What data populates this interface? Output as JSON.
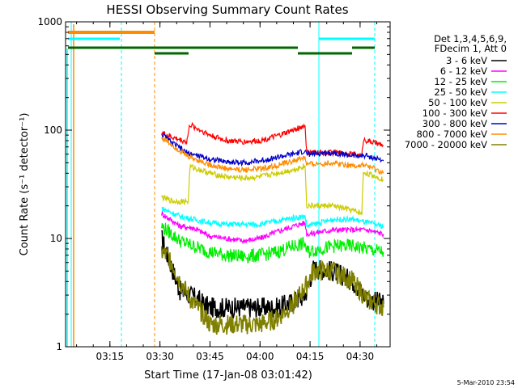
{
  "chart_data": {
    "type": "line",
    "title": "HESSI Observing Summary Count Rates",
    "xlabel": "Start Time (17-Jan-08 03:01:42)",
    "ylabel": "Count Rate (s⁻¹ detector⁻¹)",
    "yscale": "log",
    "ylim": [
      1,
      1000
    ],
    "xlim": [
      "03:01:42",
      "04:39:00"
    ],
    "x_ticks": [
      "03:15",
      "03:30",
      "03:45",
      "04:00",
      "04:15",
      "04:30"
    ],
    "y_ticks": [
      "1",
      "10",
      "100",
      "1000"
    ],
    "footer": "5-Mar-2010 23:54",
    "legend": {
      "position": "right",
      "header": [
        "Det 1,3,4,5,6,9,",
        "FDecim 1, Att 0"
      ]
    },
    "series": [
      {
        "name": "3 - 6 keV",
        "color": "#000000",
        "points": [
          [
            "03:30:30",
            10
          ],
          [
            "03:36:00",
            3.3
          ],
          [
            "03:40:00",
            2.9
          ],
          [
            "03:45:00",
            2.3
          ],
          [
            "03:50:00",
            2.3
          ],
          [
            "03:55:00",
            2.3
          ],
          [
            "04:00:00",
            2.3
          ],
          [
            "04:05:00",
            2.3
          ],
          [
            "04:10:00",
            2.6
          ],
          [
            "04:13:30",
            3.0
          ],
          [
            "04:16:00",
            5.3
          ],
          [
            "04:22:00",
            5.0
          ],
          [
            "04:28:00",
            4.0
          ],
          [
            "04:32:00",
            2.8
          ],
          [
            "04:37:00",
            2.5
          ]
        ]
      },
      {
        "name": "6 - 12 keV",
        "color": "#ff00ff",
        "points": [
          [
            "03:30:30",
            17
          ],
          [
            "03:36:00",
            13
          ],
          [
            "03:40:00",
            12.5
          ],
          [
            "03:45:00",
            10.5
          ],
          [
            "03:50:00",
            10
          ],
          [
            "03:55:00",
            9.5
          ],
          [
            "04:00:00",
            10
          ],
          [
            "04:05:00",
            11.5
          ],
          [
            "04:10:00",
            13
          ],
          [
            "04:13:30",
            14
          ],
          [
            "04:14:00",
            11
          ],
          [
            "04:22:00",
            12
          ],
          [
            "04:28:00",
            12
          ],
          [
            "04:32:00",
            12
          ],
          [
            "04:37:00",
            11
          ]
        ]
      },
      {
        "name": "12 - 25 keV",
        "color": "#00ee00",
        "points": [
          [
            "03:30:30",
            13
          ],
          [
            "03:36:00",
            9.5
          ],
          [
            "03:40:00",
            8.5
          ],
          [
            "03:45:00",
            7.5
          ],
          [
            "03:50:00",
            7
          ],
          [
            "03:55:00",
            6.8
          ],
          [
            "04:00:00",
            7
          ],
          [
            "04:05:00",
            7.5
          ],
          [
            "04:10:00",
            8.5
          ],
          [
            "04:13:30",
            9
          ],
          [
            "04:14:00",
            7.5
          ],
          [
            "04:22:00",
            8.5
          ],
          [
            "04:28:00",
            8.5
          ],
          [
            "04:32:00",
            8
          ],
          [
            "04:37:00",
            7.5
          ]
        ]
      },
      {
        "name": "25 - 50 keV",
        "color": "#00ffff",
        "points": [
          [
            "03:30:30",
            19
          ],
          [
            "03:36:00",
            16
          ],
          [
            "03:40:00",
            15
          ],
          [
            "03:45:00",
            14
          ],
          [
            "03:50:00",
            13.5
          ],
          [
            "03:55:00",
            13.5
          ],
          [
            "04:00:00",
            13.5
          ],
          [
            "04:05:00",
            14.5
          ],
          [
            "04:10:00",
            15.5
          ],
          [
            "04:13:30",
            16
          ],
          [
            "04:14:00",
            13
          ],
          [
            "04:22:00",
            15
          ],
          [
            "04:28:00",
            15
          ],
          [
            "04:32:00",
            14
          ],
          [
            "04:37:00",
            13
          ]
        ]
      },
      {
        "name": "50 - 100 keV",
        "color": "#cccc00",
        "points": [
          [
            "03:30:30",
            24
          ],
          [
            "03:34:00",
            22
          ],
          [
            "03:38:30",
            22
          ],
          [
            "03:39:00",
            46
          ],
          [
            "03:45:00",
            40
          ],
          [
            "03:50:00",
            37
          ],
          [
            "03:55:00",
            36
          ],
          [
            "04:00:00",
            37
          ],
          [
            "04:05:00",
            40
          ],
          [
            "04:10:00",
            43
          ],
          [
            "04:13:30",
            47
          ],
          [
            "04:14:00",
            20
          ],
          [
            "04:22:00",
            20
          ],
          [
            "04:28:00",
            18
          ],
          [
            "04:30:30",
            17
          ],
          [
            "04:31:00",
            41
          ],
          [
            "04:37:00",
            35
          ]
        ]
      },
      {
        "name": "100 - 300 keV",
        "color": "#ff0000",
        "points": [
          [
            "03:30:30",
            95
          ],
          [
            "03:34:00",
            85
          ],
          [
            "03:38:00",
            78
          ],
          [
            "03:39:00",
            112
          ],
          [
            "03:45:00",
            90
          ],
          [
            "03:50:00",
            80
          ],
          [
            "03:55:00",
            78
          ],
          [
            "04:00:00",
            80
          ],
          [
            "04:05:00",
            88
          ],
          [
            "04:10:00",
            100
          ],
          [
            "04:13:30",
            110
          ],
          [
            "04:14:00",
            62
          ],
          [
            "04:22:00",
            62
          ],
          [
            "04:28:00",
            60
          ],
          [
            "04:30:30",
            58
          ],
          [
            "04:31:00",
            82
          ],
          [
            "04:37:00",
            72
          ]
        ]
      },
      {
        "name": "300 - 800 keV",
        "color": "#0000cc",
        "points": [
          [
            "03:30:30",
            92
          ],
          [
            "03:34:00",
            75
          ],
          [
            "03:38:00",
            62
          ],
          [
            "03:45:00",
            54
          ],
          [
            "03:50:00",
            51
          ],
          [
            "03:55:00",
            50
          ],
          [
            "04:00:00",
            52
          ],
          [
            "04:05:00",
            56
          ],
          [
            "04:10:00",
            60
          ],
          [
            "04:13:30",
            64
          ],
          [
            "04:14:00",
            60
          ],
          [
            "04:22:00",
            62
          ],
          [
            "04:28:00",
            58
          ],
          [
            "04:32:00",
            58
          ],
          [
            "04:37:00",
            52
          ]
        ]
      },
      {
        "name": "800 - 7000 keV",
        "color": "#ff8c00",
        "points": [
          [
            "03:30:30",
            85
          ],
          [
            "03:34:00",
            72
          ],
          [
            "03:38:00",
            58
          ],
          [
            "03:45:00",
            48
          ],
          [
            "03:50:00",
            44
          ],
          [
            "03:55:00",
            43
          ],
          [
            "04:00:00",
            44
          ],
          [
            "04:05:00",
            47
          ],
          [
            "04:10:00",
            52
          ],
          [
            "04:13:30",
            56
          ],
          [
            "04:14:00",
            48
          ],
          [
            "04:22:00",
            50
          ],
          [
            "04:28:00",
            47
          ],
          [
            "04:32:00",
            47
          ],
          [
            "04:37:00",
            40
          ]
        ]
      },
      {
        "name": "7000 - 20000 keV",
        "color": "#808000",
        "points": [
          [
            "03:30:30",
            7.5
          ],
          [
            "03:33:00",
            6.5
          ],
          [
            "03:36:00",
            4
          ],
          [
            "03:40:00",
            2.5
          ],
          [
            "03:43:00",
            2
          ],
          [
            "03:45:00",
            1.6
          ],
          [
            "03:50:00",
            1.6
          ],
          [
            "03:55:00",
            1.6
          ],
          [
            "04:00:00",
            1.6
          ],
          [
            "04:05:00",
            1.8
          ],
          [
            "04:10:00",
            2.5
          ],
          [
            "04:13:30",
            3.5
          ],
          [
            "04:16:00",
            5
          ],
          [
            "04:22:00",
            5
          ],
          [
            "04:28:00",
            4
          ],
          [
            "04:32:00",
            2.7
          ],
          [
            "04:37:00",
            2.3
          ]
        ]
      }
    ]
  }
}
